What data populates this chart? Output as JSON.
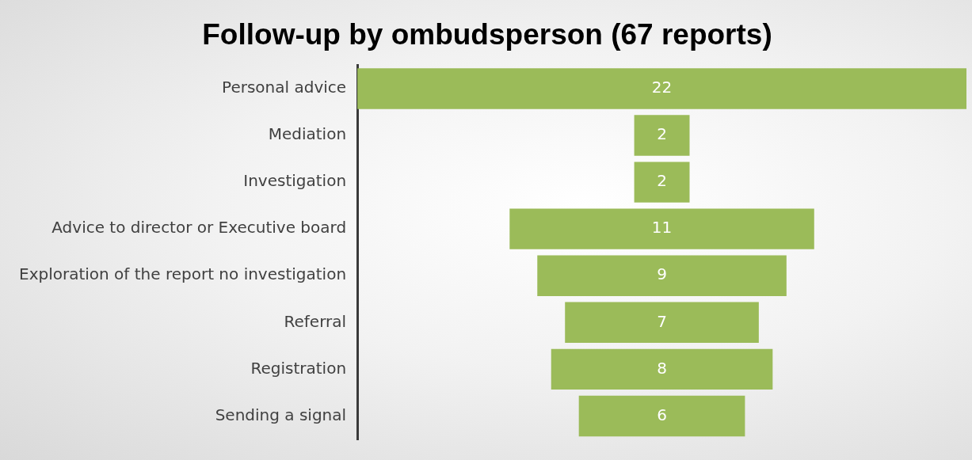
{
  "chart_data": {
    "type": "other",
    "title": "Follow-up by ombudsperson (67 reports)",
    "categories": [
      "Personal advice",
      "Mediation",
      "Investigation",
      "Advice to director or Executive board",
      "Exploration of the report no investigation",
      "Referral",
      "Registration",
      "Sending a signal"
    ],
    "values": [
      22,
      2,
      2,
      11,
      9,
      7,
      8,
      6
    ],
    "color": "#9bbb59",
    "data_labels": true
  }
}
